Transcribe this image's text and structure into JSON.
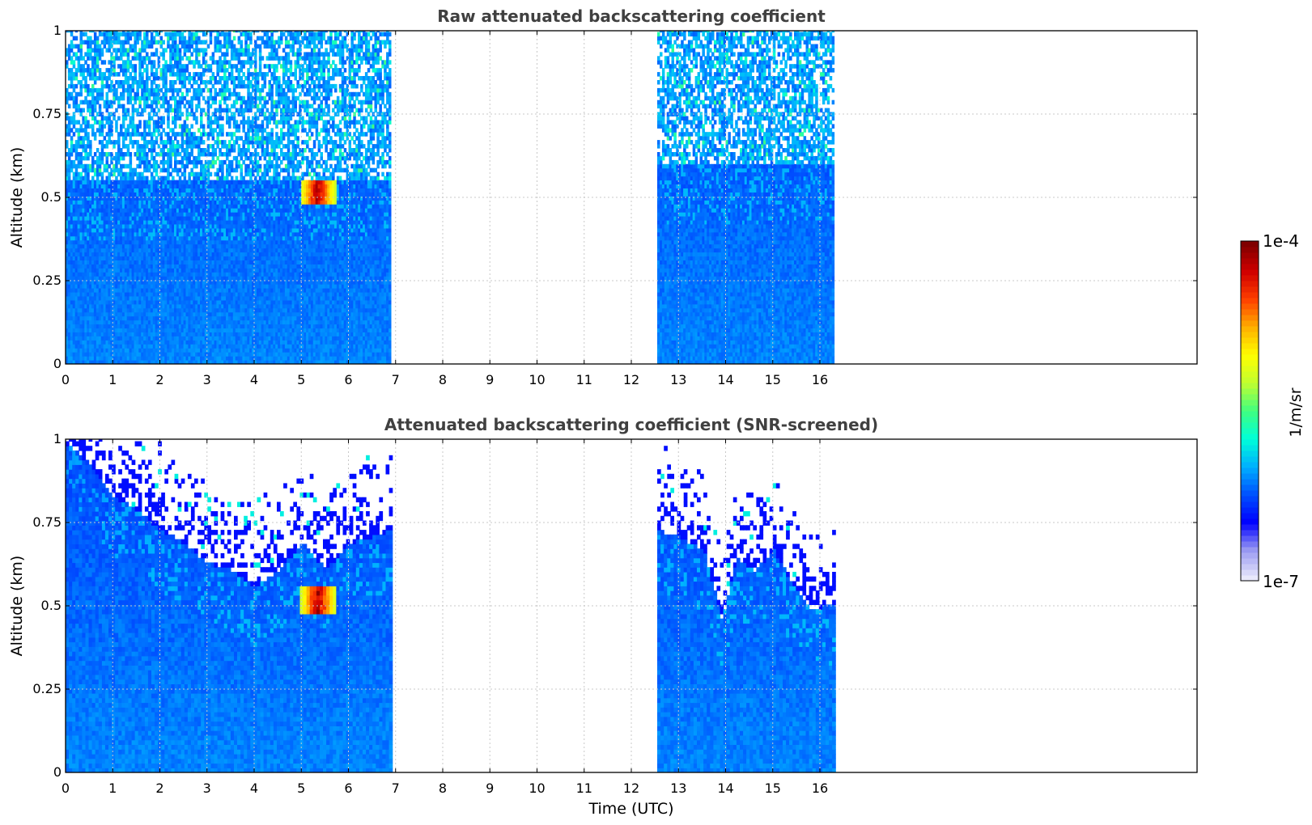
{
  "colors": {
    "title_text": "#404040",
    "grid": "#c8c8c8",
    "axis": "#000000",
    "colormap": [
      "#e8e8fb",
      "#9a9af2",
      "#0000ff",
      "#0050ff",
      "#00b0ff",
      "#00ffd8",
      "#40ff80",
      "#c0ff30",
      "#ffff00",
      "#ffb000",
      "#ff4000",
      "#d00000",
      "#800000"
    ]
  },
  "chart_data": [
    {
      "type": "heatmap",
      "title": "Raw attenuated backscattering coefficient",
      "xlabel": "",
      "ylabel": "Altitude (km)",
      "xlim": [
        0,
        24
      ],
      "ylim": [
        0,
        1
      ],
      "x_ticks": [
        0,
        1,
        2,
        3,
        4,
        5,
        6,
        7,
        8,
        9,
        10,
        11,
        12,
        13,
        14,
        15,
        16
      ],
      "x_tick_labels": [
        "0",
        "1",
        "2",
        "3",
        "4",
        "5",
        "6",
        "7",
        "8",
        "9",
        "10",
        "11",
        "12",
        "13",
        "14",
        "15",
        "16"
      ],
      "y_ticks": [
        0,
        0.25,
        0.5,
        0.75,
        1
      ],
      "y_tick_labels": [
        "0",
        "0.25",
        "0.5",
        "0.75",
        "1"
      ],
      "grid": true,
      "data_segments": [
        {
          "start": 0,
          "end": 6.9
        },
        {
          "start": 12.55,
          "end": 16.3
        }
      ],
      "layer_top": [
        {
          "x": 0,
          "km": 0.55
        },
        {
          "x": 6.9,
          "km": 0.55
        },
        {
          "x": 12.55,
          "km": 0.6
        },
        {
          "x": 16.3,
          "km": 0.6
        }
      ],
      "features": [
        {
          "type": "cloud",
          "start": 4.95,
          "end": 5.7,
          "base_km": 0.47,
          "top_km": 0.55
        }
      ],
      "z_scale": "log",
      "z_range": [
        1e-07,
        0.0001
      ]
    },
    {
      "type": "heatmap",
      "title": "Attenuated backscattering coefficient (SNR-screened)",
      "xlabel": "Time (UTC)",
      "ylabel": "Altitude (km)",
      "xlim": [
        0,
        24
      ],
      "ylim": [
        0,
        1
      ],
      "x_ticks": [
        0,
        1,
        2,
        3,
        4,
        5,
        6,
        7,
        8,
        9,
        10,
        11,
        12,
        13,
        14,
        15,
        16
      ],
      "x_tick_labels": [
        "0",
        "1",
        "2",
        "3",
        "4",
        "5",
        "6",
        "7",
        "8",
        "9",
        "10",
        "11",
        "12",
        "13",
        "14",
        "15",
        "16"
      ],
      "y_ticks": [
        0,
        0.25,
        0.5,
        0.75,
        1
      ],
      "y_tick_labels": [
        "0",
        "0.25",
        "0.5",
        "0.75",
        "1"
      ],
      "grid": true,
      "data_segments": [
        {
          "start": 0,
          "end": 6.9
        },
        {
          "start": 12.55,
          "end": 16.3
        }
      ],
      "layer_top": [
        {
          "x": 0,
          "km": 0.98
        },
        {
          "x": 0.5,
          "km": 0.92
        },
        {
          "x": 1,
          "km": 0.82
        },
        {
          "x": 1.5,
          "km": 0.78
        },
        {
          "x": 2,
          "km": 0.72
        },
        {
          "x": 2.5,
          "km": 0.68
        },
        {
          "x": 3,
          "km": 0.62
        },
        {
          "x": 3.5,
          "km": 0.6
        },
        {
          "x": 4,
          "km": 0.55
        },
        {
          "x": 4.5,
          "km": 0.6
        },
        {
          "x": 5,
          "km": 0.68
        },
        {
          "x": 5.5,
          "km": 0.6
        },
        {
          "x": 6,
          "km": 0.68
        },
        {
          "x": 6.5,
          "km": 0.7
        },
        {
          "x": 6.9,
          "km": 0.72
        },
        {
          "x": 12.55,
          "km": 0.72
        },
        {
          "x": 13,
          "km": 0.7
        },
        {
          "x": 13.5,
          "km": 0.66
        },
        {
          "x": 13.9,
          "km": 0.45
        },
        {
          "x": 14.2,
          "km": 0.64
        },
        {
          "x": 14.6,
          "km": 0.6
        },
        {
          "x": 15,
          "km": 0.66
        },
        {
          "x": 15.4,
          "km": 0.55
        },
        {
          "x": 15.8,
          "km": 0.48
        },
        {
          "x": 16.3,
          "km": 0.5
        }
      ],
      "features": [
        {
          "type": "cloud",
          "start": 4.95,
          "end": 5.7,
          "base_km": 0.47,
          "top_km": 0.55
        }
      ],
      "z_scale": "log",
      "z_range": [
        1e-07,
        0.0001
      ]
    }
  ],
  "colorbar": {
    "label": "1/m/sr",
    "max_label": "1e-4",
    "min_label": "1e-7"
  }
}
